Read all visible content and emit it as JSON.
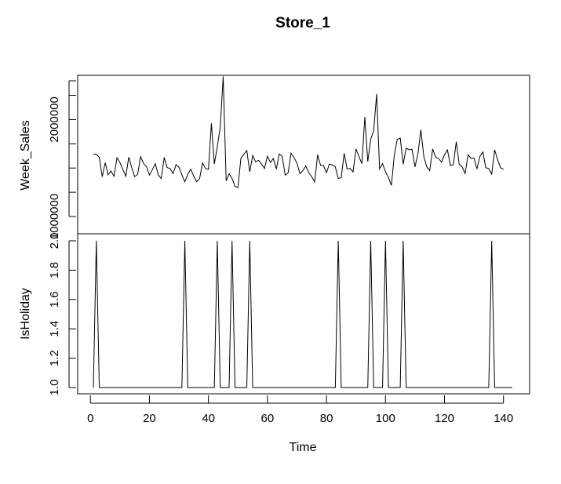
{
  "chart_data": {
    "title": "Store_1",
    "xlabel": "Time",
    "x_ticks": [
      0,
      20,
      40,
      60,
      80,
      100,
      120,
      140
    ],
    "xlim": [
      1,
      143
    ],
    "panels": [
      {
        "name": "Week_Sales",
        "ylabel": "Week_Sales",
        "type": "line",
        "ylim": [
          1250000,
          2450000
        ],
        "y_ticks": [
          1000000,
          1500000,
          2000000
        ],
        "y_tick_labels": [
          "1000000",
          "",
          "2000000"
        ],
        "values": [
          1644000,
          1642000,
          1612000,
          1410000,
          1555000,
          1432000,
          1468000,
          1415000,
          1606000,
          1556000,
          1484000,
          1415000,
          1613000,
          1505000,
          1411000,
          1435000,
          1618000,
          1547000,
          1514000,
          1428000,
          1484000,
          1545000,
          1428000,
          1392000,
          1609000,
          1505000,
          1495000,
          1442000,
          1534000,
          1508000,
          1429000,
          1358000,
          1435000,
          1488000,
          1418000,
          1360000,
          1391000,
          1553000,
          1495000,
          1487000,
          1962000,
          1541000,
          1720000,
          1922000,
          2445000,
          1368000,
          1440000,
          1393000,
          1312000,
          1298000,
          1601000,
          1642000,
          1681000,
          1461000,
          1630000,
          1565000,
          1580000,
          1542000,
          1495000,
          1624000,
          1557000,
          1598000,
          1489000,
          1645000,
          1621000,
          1426000,
          1450000,
          1653000,
          1609000,
          1551000,
          1441000,
          1474000,
          1521000,
          1454000,
          1410000,
          1358000,
          1637000,
          1528000,
          1526000,
          1452000,
          1541000,
          1532000,
          1511000,
          1392000,
          1401000,
          1652000,
          1490000,
          1496000,
          1460000,
          1697000,
          1620000,
          1545000,
          2028000,
          1567000,
          1797000,
          1883000,
          2263000,
          1491000,
          1546000,
          1463000,
          1401000,
          1321000,
          1637000,
          1796000,
          1810000,
          1539000,
          1705000,
          1689000,
          1693000,
          1512000,
          1647000,
          1895000,
          1618000,
          1513000,
          1473000,
          1697000,
          1613000,
          1597000,
          1562000,
          1637000,
          1687000,
          1526000,
          1535000,
          1772000,
          1536000,
          1511000,
          1444000,
          1637000,
          1601000,
          1603000,
          1491000,
          1620000,
          1666000,
          1504000,
          1494000,
          1437000,
          1688000,
          1586000,
          1503000,
          1487000
        ]
      },
      {
        "name": "IsHoliday",
        "ylabel": "IsHoliday",
        "type": "line",
        "ylim": [
          0.96,
          2.0
        ],
        "y_ticks": [
          1.0,
          1.2,
          1.4,
          1.6,
          1.8,
          2.0
        ],
        "y_tick_labels": [
          "1.0",
          "1.2",
          "1.4",
          "1.6",
          "1.8",
          "2.0"
        ],
        "holiday_times": [
          2,
          32,
          43,
          48,
          54,
          84,
          95,
          100,
          106,
          136
        ],
        "values_rule": "2 at holiday_times, 1 elsewhere"
      }
    ]
  }
}
